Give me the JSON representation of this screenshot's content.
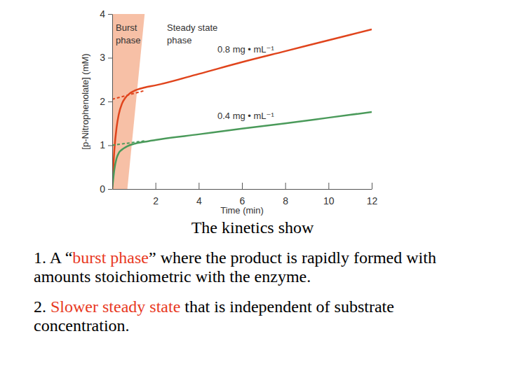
{
  "chart_data": {
    "type": "line",
    "x_label": "Time (min)",
    "y_label": "[p-Nitrophenolate] (mM)",
    "xlim": [
      0,
      12
    ],
    "xticks": [
      2,
      4,
      6,
      8,
      10,
      12
    ],
    "ylim": [
      0,
      4
    ],
    "yticks": [
      0,
      1,
      2,
      3,
      4
    ],
    "grid": false,
    "annotations": [
      [
        "Burst",
        "phase"
      ],
      [
        "Steady state",
        "phase"
      ]
    ],
    "burst_region": {
      "x_bottom": [
        0,
        0.7
      ],
      "x_top": [
        0,
        1.5
      ],
      "color": "#f6b596"
    },
    "series": [
      {
        "name": "0.8 mg • mL⁻¹",
        "color": "#e0441c",
        "line_style": "solid",
        "x": [
          0,
          0.1,
          0.2,
          0.3,
          0.45,
          0.6,
          0.8,
          1.0,
          1.5,
          2,
          4,
          6,
          8,
          10,
          12
        ],
        "values": [
          0,
          0.9,
          1.4,
          1.7,
          1.95,
          2.08,
          2.18,
          2.24,
          2.32,
          2.37,
          2.63,
          2.9,
          3.15,
          3.4,
          3.65
        ]
      },
      {
        "name": "0.4 mg • mL⁻¹",
        "color": "#4a9a5a",
        "line_style": "solid",
        "x": [
          0,
          0.1,
          0.2,
          0.3,
          0.45,
          0.6,
          0.8,
          1.0,
          1.5,
          2,
          4,
          6,
          8,
          10,
          12
        ],
        "values": [
          0,
          0.45,
          0.7,
          0.82,
          0.9,
          0.95,
          1.0,
          1.03,
          1.08,
          1.12,
          1.25,
          1.38,
          1.5,
          1.63,
          1.76
        ]
      },
      {
        "color": "#e0441c",
        "line_style": "dashed",
        "x": [
          0,
          1.5
        ],
        "values": [
          2.05,
          2.25
        ]
      },
      {
        "color": "#4a9a5a",
        "line_style": "dashed",
        "x": [
          0,
          1.5
        ],
        "values": [
          1.0,
          1.1
        ]
      }
    ]
  },
  "caption": {
    "heading": "The kinetics show",
    "items": [
      [
        {
          "text": "1. A “"
        },
        {
          "text": "burst phase",
          "color": "#e8391e"
        },
        {
          "text": "” where the product is rapidly formed with amounts stoichiometric with the enzyme."
        }
      ],
      [
        {
          "text": "2. "
        },
        {
          "text": "Slower steady state",
          "color": "#e8391e"
        },
        {
          "text": " that is independent of substrate concentration."
        }
      ]
    ]
  }
}
